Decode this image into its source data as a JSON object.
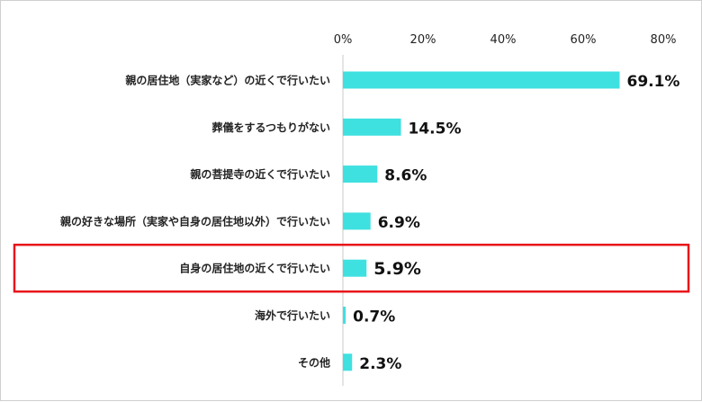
{
  "chart_data": {
    "type": "bar",
    "orientation": "horizontal",
    "title": "",
    "xlabel": "",
    "ylabel": "",
    "categories": [
      "親の居住地（実家など）の近くで行いたい",
      "葬儀をするつもりがない",
      "親の菩提寺の近くで行いたい",
      "親の好きな場所（実家や自身の居住地以外）で行いたい",
      "自身の居住地の近くで行いたい",
      "海外で行いたい",
      "その他"
    ],
    "values": [
      69.1,
      14.5,
      8.6,
      6.9,
      5.9,
      0.7,
      2.3
    ],
    "value_labels": [
      "69.1%",
      "14.5%",
      "8.6%",
      "6.9%",
      "5.9%",
      "0.7%",
      "2.3%"
    ],
    "xlim": [
      0,
      80
    ],
    "ticks": [
      0,
      20,
      40,
      60,
      80
    ],
    "tick_labels": [
      "0%",
      "20%",
      "40%",
      "60%",
      "80%"
    ],
    "grid": false,
    "legend": "none",
    "highlighted_category": "自身の居住地の近くで行いたい",
    "colors": {
      "bar": "#3fe0e0",
      "highlight_box": "#e8141b",
      "axis": "#c8c8c8",
      "text": "#222222"
    }
  }
}
